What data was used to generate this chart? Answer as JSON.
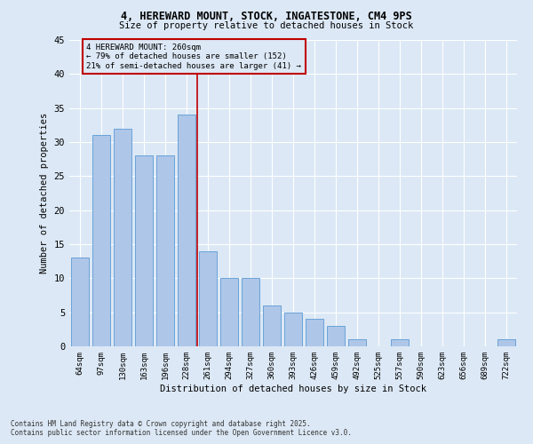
{
  "title1": "4, HEREWARD MOUNT, STOCK, INGATESTONE, CM4 9PS",
  "title2": "Size of property relative to detached houses in Stock",
  "xlabel": "Distribution of detached houses by size in Stock",
  "ylabel": "Number of detached properties",
  "categories": [
    "64sqm",
    "97sqm",
    "130sqm",
    "163sqm",
    "196sqm",
    "228sqm",
    "261sqm",
    "294sqm",
    "327sqm",
    "360sqm",
    "393sqm",
    "426sqm",
    "459sqm",
    "492sqm",
    "525sqm",
    "557sqm",
    "590sqm",
    "623sqm",
    "656sqm",
    "689sqm",
    "722sqm"
  ],
  "values": [
    13,
    31,
    32,
    28,
    28,
    34,
    14,
    10,
    10,
    6,
    5,
    4,
    3,
    1,
    0,
    1,
    0,
    0,
    0,
    0,
    1
  ],
  "bar_color": "#aec6e8",
  "bar_edge_color": "#5b9bd5",
  "vline_index": 6,
  "annotation_line1": "4 HEREWARD MOUNT: 260sqm",
  "annotation_line2": "← 79% of detached houses are smaller (152)",
  "annotation_line3": "21% of semi-detached houses are larger (41) →",
  "vline_color": "#c00000",
  "bg_color": "#dce8f5",
  "footer1": "Contains HM Land Registry data © Crown copyright and database right 2025.",
  "footer2": "Contains public sector information licensed under the Open Government Licence v3.0.",
  "ylim": [
    0,
    45
  ],
  "yticks": [
    0,
    5,
    10,
    15,
    20,
    25,
    30,
    35,
    40,
    45
  ]
}
